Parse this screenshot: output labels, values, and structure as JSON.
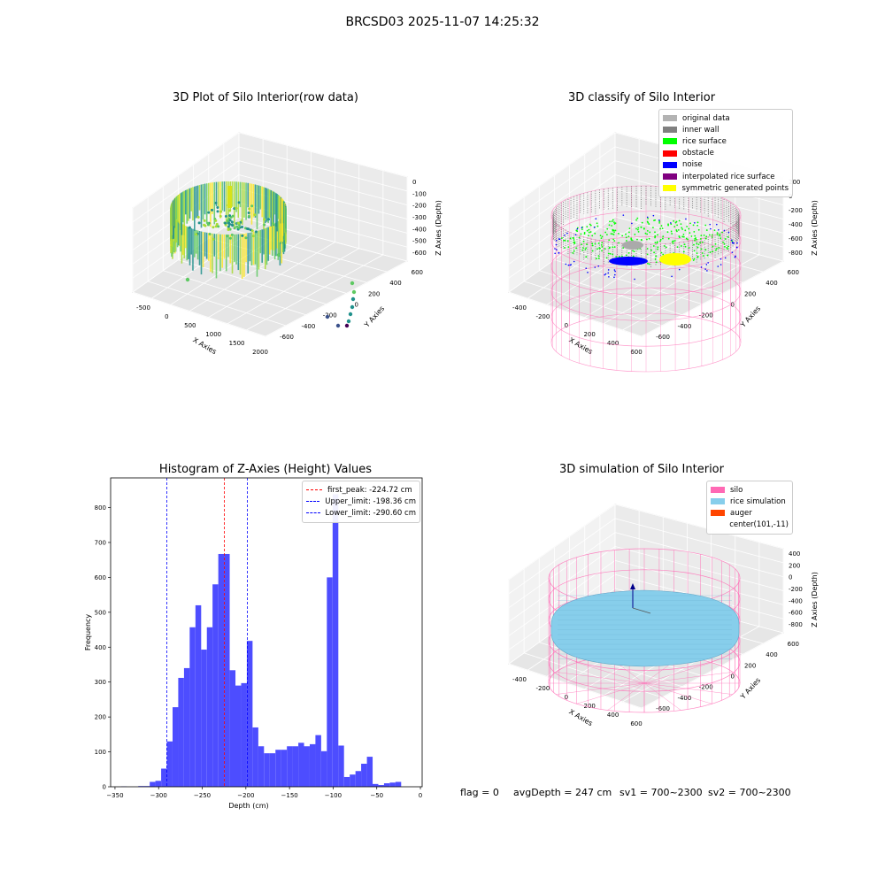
{
  "suptitle": "BRCSD03 2025-11-07 14:25:32",
  "chart_data": [
    {
      "type": "scatter",
      "title": "3D Plot of Silo Interior(row data)",
      "xlabel": "X Axies",
      "ylabel": "Y Axies",
      "zlabel": "Z Axies (Depth)",
      "x_ticks": [
        "-500",
        "0",
        "500",
        "1000",
        "1500",
        "2000"
      ],
      "y_ticks": [
        "-600",
        "-400",
        "-200",
        "0",
        "200",
        "400",
        "600"
      ],
      "z_ticks": [
        "0",
        "-100",
        "-200",
        "-300",
        "-400",
        "-500",
        "-600"
      ],
      "colormap": "viridis"
    },
    {
      "type": "scatter",
      "title": "3D classify of Silo Interior",
      "xlabel": "X Axies",
      "ylabel": "Y Axies",
      "zlabel": "Z Axies (Depth)",
      "x_ticks": [
        "-400",
        "-200",
        "0",
        "200",
        "400",
        "600"
      ],
      "y_ticks": [
        "-600",
        "-400",
        "-200",
        "0",
        "200",
        "400",
        "600"
      ],
      "z_ticks": [
        "200",
        "0",
        "-200",
        "-400",
        "-600",
        "-800"
      ],
      "legend": [
        {
          "label": "original data",
          "color": "#b3b3b3"
        },
        {
          "label": "inner wall",
          "color": "#808080"
        },
        {
          "label": "rice surface",
          "color": "#00ff00"
        },
        {
          "label": "obstacle",
          "color": "#ff0000"
        },
        {
          "label": "noise",
          "color": "#0000ff"
        },
        {
          "label": "interpolated rice surface",
          "color": "#800080"
        },
        {
          "label": "symmetric generated points",
          "color": "#ffff00"
        }
      ],
      "wireframe_color": "#ff69b4"
    },
    {
      "type": "bar",
      "title": "Histogram of Z-Axies (Height) Values",
      "xlabel": "Depth (cm)",
      "ylabel": "Frequency",
      "xlim": [
        -355,
        2
      ],
      "ylim": [
        0,
        885
      ],
      "x_ticks": [
        -350,
        -300,
        -250,
        -200,
        -150,
        -100,
        -50,
        0
      ],
      "y_ticks": [
        0,
        100,
        200,
        300,
        400,
        500,
        600,
        700,
        800
      ],
      "bin_width": 6.55,
      "bins": [
        {
          "x0": -343.0,
          "v": 1
        },
        {
          "x0": -336.4,
          "v": 0
        },
        {
          "x0": -329.9,
          "v": 0
        },
        {
          "x0": -323.3,
          "v": 2
        },
        {
          "x0": -316.8,
          "v": 2
        },
        {
          "x0": -310.2,
          "v": 14
        },
        {
          "x0": -303.7,
          "v": 17
        },
        {
          "x0": -297.1,
          "v": 52
        },
        {
          "x0": -290.6,
          "v": 130
        },
        {
          "x0": -284.0,
          "v": 228
        },
        {
          "x0": -277.5,
          "v": 312
        },
        {
          "x0": -270.9,
          "v": 340
        },
        {
          "x0": -264.4,
          "v": 457
        },
        {
          "x0": -257.8,
          "v": 520
        },
        {
          "x0": -251.3,
          "v": 393
        },
        {
          "x0": -244.7,
          "v": 457
        },
        {
          "x0": -238.2,
          "v": 580
        },
        {
          "x0": -231.6,
          "v": 667
        },
        {
          "x0": -225.1,
          "v": 667
        },
        {
          "x0": -218.5,
          "v": 334
        },
        {
          "x0": -212.0,
          "v": 290
        },
        {
          "x0": -205.4,
          "v": 297
        },
        {
          "x0": -198.9,
          "v": 418
        },
        {
          "x0": -192.3,
          "v": 170
        },
        {
          "x0": -185.8,
          "v": 116
        },
        {
          "x0": -179.2,
          "v": 96
        },
        {
          "x0": -172.7,
          "v": 96
        },
        {
          "x0": -166.1,
          "v": 106
        },
        {
          "x0": -159.6,
          "v": 106
        },
        {
          "x0": -153.0,
          "v": 116
        },
        {
          "x0": -146.5,
          "v": 116
        },
        {
          "x0": -139.9,
          "v": 126
        },
        {
          "x0": -133.4,
          "v": 116
        },
        {
          "x0": -126.8,
          "v": 122
        },
        {
          "x0": -120.3,
          "v": 148
        },
        {
          "x0": -113.7,
          "v": 102
        },
        {
          "x0": -107.2,
          "v": 600
        },
        {
          "x0": -100.6,
          "v": 838
        },
        {
          "x0": -94.1,
          "v": 118
        },
        {
          "x0": -87.5,
          "v": 28
        },
        {
          "x0": -81.0,
          "v": 35
        },
        {
          "x0": -74.4,
          "v": 45
        },
        {
          "x0": -67.9,
          "v": 66
        },
        {
          "x0": -61.3,
          "v": 86
        },
        {
          "x0": -54.8,
          "v": 8
        },
        {
          "x0": -48.2,
          "v": 5
        },
        {
          "x0": -41.7,
          "v": 10
        },
        {
          "x0": -35.1,
          "v": 12
        },
        {
          "x0": -28.6,
          "v": 14
        }
      ],
      "bar_color": "#4d4dff",
      "vlines": [
        {
          "label": "first_peak: -224.72 cm",
          "x": -224.72,
          "color": "#ff0000"
        },
        {
          "label": "Upper_limit: -198.36 cm",
          "x": -198.36,
          "color": "#0000ff"
        },
        {
          "label": "Lower_limit: -290.60 cm",
          "x": -290.6,
          "color": "#0000ff"
        }
      ]
    },
    {
      "type": "scatter",
      "title": "3D simulation of Silo Interior",
      "xlabel": "X Axies",
      "ylabel": "Y Axies",
      "zlabel": "Z Axies (Depth)",
      "x_ticks": [
        "-400",
        "-200",
        "0",
        "200",
        "400",
        "600"
      ],
      "y_ticks": [
        "-600",
        "-400",
        "-200",
        "0",
        "200",
        "400",
        "600"
      ],
      "z_ticks": [
        "400",
        "200",
        "0",
        "-200",
        "-400",
        "-600",
        "-800"
      ],
      "legend": [
        {
          "label": "silo",
          "color": "#ff69b4"
        },
        {
          "label": "rice simulation",
          "color": "#87ceeb"
        },
        {
          "label": "auger",
          "color": "#ff4500"
        },
        {
          "label": "center(101,-11)",
          "color": ""
        }
      ]
    }
  ],
  "footer": {
    "flag": "flag = 0",
    "avg_depth": "avgDepth = 247 cm",
    "sv1": "sv1 = 700~2300",
    "sv2": "sv2 = 700~2300"
  }
}
